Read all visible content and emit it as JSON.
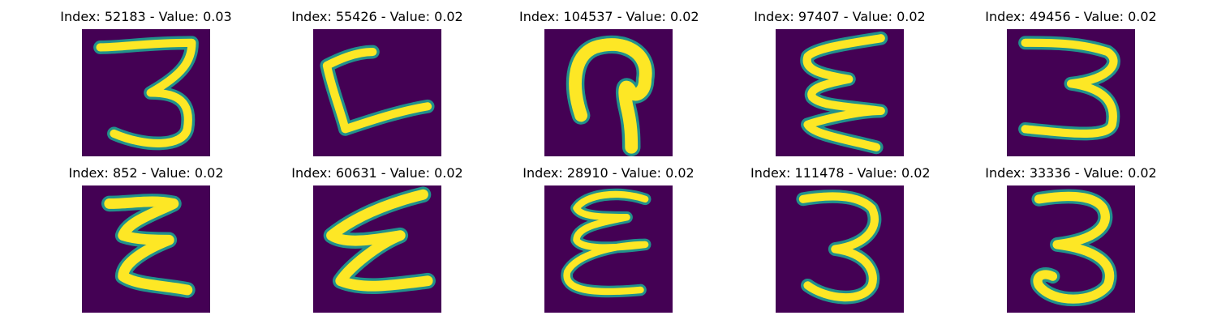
{
  "colormap": {
    "name": "viridis",
    "background": "#440154",
    "mid": "#21918c",
    "high": "#fde725"
  },
  "panels": [
    {
      "title": "Index: 52183 - Value: 0.03",
      "glyph": "3"
    },
    {
      "title": "Index: 55426 - Value: 0.02",
      "glyph": "L"
    },
    {
      "title": "Index: 104537 - Value: 0.02",
      "glyph": "hook"
    },
    {
      "title": "Index: 97407 - Value: 0.02",
      "glyph": "E-squiggle"
    },
    {
      "title": "Index: 49456 - Value: 0.02",
      "glyph": "3"
    },
    {
      "title": "Index: 852 - Value: 0.02",
      "glyph": "Z-squiggle"
    },
    {
      "title": "Index: 60631 - Value: 0.02",
      "glyph": "E-squiggle"
    },
    {
      "title": "Index: 28910 - Value: 0.02",
      "glyph": "E"
    },
    {
      "title": "Index: 111478 - Value: 0.02",
      "glyph": "3"
    },
    {
      "title": "Index: 33336 - Value: 0.02",
      "glyph": "3"
    }
  ]
}
